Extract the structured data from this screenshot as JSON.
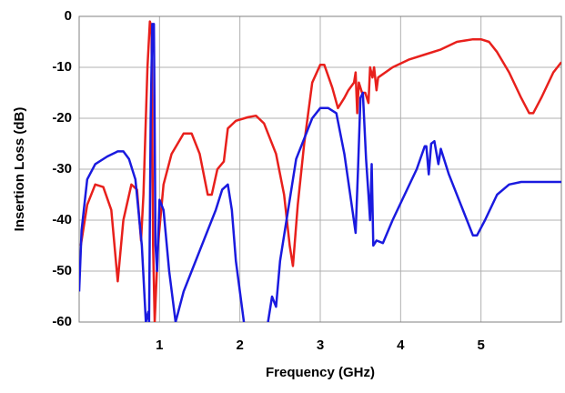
{
  "chart_data": {
    "type": "line",
    "x_label": "Frequency (GHz)",
    "y_label": "Insertion Loss (dB)",
    "xlim": [
      0,
      6
    ],
    "ylim": [
      -60,
      0
    ],
    "xticks": [
      1,
      2,
      3,
      4,
      5
    ],
    "yticks": [
      0,
      -10,
      -20,
      -30,
      -40,
      -50,
      -60
    ],
    "grid": true,
    "series": [
      {
        "color": "#e8201c",
        "x": [
          0.02,
          0.1,
          0.2,
          0.3,
          0.4,
          0.48,
          0.55,
          0.65,
          0.72,
          0.77,
          0.8,
          0.85,
          0.88,
          0.9,
          0.92,
          0.94,
          0.98,
          1.05,
          1.15,
          1.3,
          1.4,
          1.5,
          1.6,
          1.65,
          1.72,
          1.8,
          1.85,
          1.95,
          2.1,
          2.2,
          2.3,
          2.45,
          2.55,
          2.62,
          2.66,
          2.72,
          2.8,
          2.9,
          3.0,
          3.05,
          3.15,
          3.22,
          3.3,
          3.35,
          3.42,
          3.44,
          3.46,
          3.48,
          3.52,
          3.56,
          3.6,
          3.62,
          3.65,
          3.67,
          3.7,
          3.72,
          3.9,
          4.1,
          4.3,
          4.5,
          4.7,
          4.9,
          5.0,
          5.1,
          5.2,
          5.35,
          5.5,
          5.6,
          5.65,
          5.75,
          5.9,
          6.0
        ],
        "values": [
          -45,
          -37,
          -33,
          -33.5,
          -38,
          -52,
          -40,
          -33,
          -34,
          -44,
          -35,
          -10,
          -1,
          -2,
          -45,
          -60,
          -45,
          -33,
          -27,
          -23,
          -23,
          -27,
          -35,
          -35,
          -30,
          -28.5,
          -22,
          -20.5,
          -19.8,
          -19.5,
          -21,
          -27,
          -35,
          -45,
          -49,
          -37,
          -25,
          -13,
          -9.5,
          -9.5,
          -14,
          -18,
          -16,
          -14.5,
          -13,
          -11,
          -19,
          -13,
          -15,
          -15,
          -17,
          -10,
          -12,
          -10,
          -14.5,
          -12,
          -10,
          -8.5,
          -7.5,
          -6.5,
          -5,
          -4.5,
          -4.5,
          -5,
          -7,
          -11,
          -16,
          -19,
          -19,
          -16,
          -11,
          -9
        ]
      },
      {
        "color": "#1a1adf",
        "x": [
          0.0,
          0.03,
          0.1,
          0.2,
          0.35,
          0.48,
          0.55,
          0.62,
          0.7,
          0.78,
          0.83,
          0.86,
          0.87,
          0.89,
          0.91,
          0.93,
          0.95,
          0.97,
          1.0,
          1.05,
          1.12,
          1.2,
          1.3,
          1.4,
          1.5,
          1.6,
          1.7,
          1.78,
          1.85,
          1.9,
          1.95,
          2.05,
          2.2,
          2.35,
          2.4,
          2.45,
          2.5,
          2.6,
          2.7,
          2.8,
          2.9,
          3.0,
          3.1,
          3.2,
          3.3,
          3.4,
          3.44,
          3.47,
          3.5,
          3.53,
          3.57,
          3.6,
          3.62,
          3.64,
          3.66,
          3.7,
          3.78,
          3.9,
          4.05,
          4.2,
          4.3,
          4.32,
          4.35,
          4.38,
          4.42,
          4.47,
          4.5,
          4.6,
          4.75,
          4.9,
          4.95,
          5.05,
          5.2,
          5.35,
          5.5,
          5.7,
          6.0
        ],
        "values": [
          -54,
          -42,
          -32,
          -29,
          -27.5,
          -26.5,
          -26.5,
          -28,
          -32,
          -45,
          -60,
          -58,
          -60,
          -20,
          -1.5,
          -1.5,
          -45,
          -50,
          -36,
          -38,
          -50,
          -60,
          -54,
          -50,
          -46,
          -42,
          -38,
          -34,
          -33,
          -38,
          -48,
          -60,
          null,
          -60,
          -55,
          -57,
          -48,
          -38,
          -28,
          -24,
          -20,
          -18,
          -18,
          -19,
          -27,
          -38,
          -42.5,
          -30,
          -16,
          -15,
          -28,
          -35,
          -40,
          -29,
          -45,
          -44,
          -44.5,
          -40,
          -35,
          -30,
          -25.5,
          -25.5,
          -31,
          -25,
          -24.5,
          -29,
          -26,
          -31,
          -37,
          -43,
          -43,
          -40,
          -35,
          -33,
          -32.5,
          -32.5,
          -32.5
        ]
      }
    ]
  }
}
